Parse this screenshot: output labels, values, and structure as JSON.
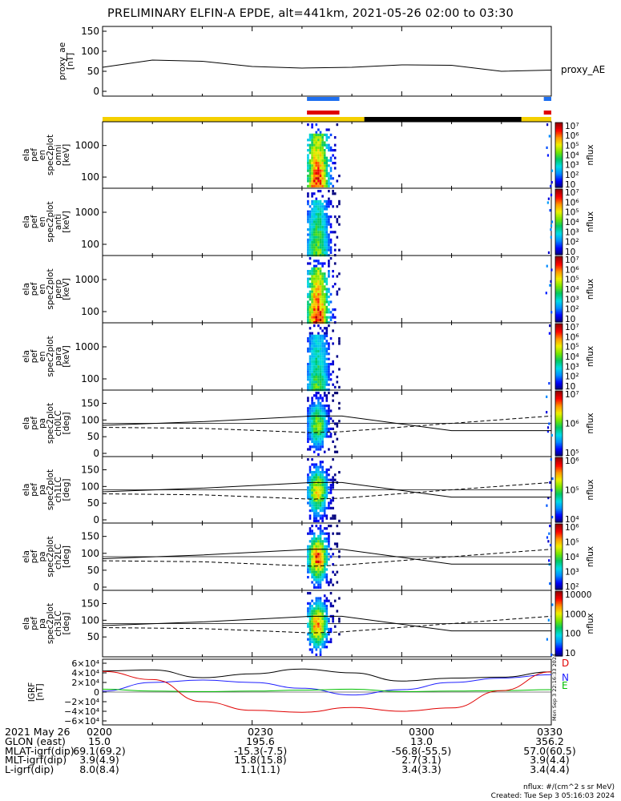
{
  "title": "PRELIMINARY ELFIN-A EPDE, alt=441km, 2021-05-26 02:00 to 03:30",
  "chart_data": [
    {
      "type": "line",
      "panel": "proxy_ae",
      "ylabel": "proxy_ae\n[nT]",
      "ylim": [
        0,
        150
      ],
      "yticks": [
        "0",
        "50",
        "100",
        "150"
      ],
      "legend": "proxy_AE",
      "x_minutes": [
        0,
        10,
        20,
        30,
        40,
        50,
        60,
        70,
        80,
        90
      ],
      "values": [
        60,
        78,
        75,
        62,
        58,
        60,
        66,
        65,
        50,
        53
      ]
    },
    {
      "type": "bar",
      "panel": "science-zone indicators",
      "blue_segments": [
        [
          41,
          47.5
        ],
        [
          88.5,
          90
        ]
      ],
      "red_segments": [
        [
          41,
          47.5
        ],
        [
          88.5,
          90
        ]
      ],
      "yellow_segments": [
        [
          0,
          52.5
        ],
        [
          84,
          90
        ]
      ],
      "black_segments": [
        [
          52.5,
          84
        ]
      ]
    },
    {
      "type": "heatmap",
      "panel": "spec-omni",
      "ylabel": "ela\npef\nen\nspec2plot\nomni\n[keV]",
      "yticks": [
        "100",
        "1000"
      ],
      "colorbar": {
        "label": "nflux",
        "ticks": [
          "10",
          "10²",
          "10³",
          "10⁴",
          "10⁵",
          "10⁶",
          "10⁷"
        ]
      }
    },
    {
      "type": "heatmap",
      "panel": "spec-anti",
      "ylabel": "ela\npef\nen\nspec2plot\nanti\n[keV]",
      "yticks": [
        "100",
        "1000"
      ],
      "colorbar": {
        "label": "nflux",
        "ticks": [
          "10",
          "10²",
          "10³",
          "10⁴",
          "10⁵",
          "10⁶",
          "10⁷"
        ]
      }
    },
    {
      "type": "heatmap",
      "panel": "spec-perp",
      "ylabel": "ela\npef\nen\nspec2plot\nperp\n[keV]",
      "yticks": [
        "100",
        "1000"
      ],
      "colorbar": {
        "label": "nflux",
        "ticks": [
          "10",
          "10²",
          "10³",
          "10⁴",
          "10⁵",
          "10⁶",
          "10⁷"
        ]
      }
    },
    {
      "type": "heatmap",
      "panel": "spec-para",
      "ylabel": "ela\npef\nen\nspec2plot\npara\n[keV]",
      "yticks": [
        "100",
        "1000"
      ],
      "colorbar": {
        "label": "nflux",
        "ticks": [
          "10",
          "10²",
          "10³",
          "10⁴",
          "10⁵",
          "10⁶",
          "10⁷"
        ]
      }
    },
    {
      "type": "heatmap",
      "panel": "pa-ch0LC",
      "ylabel": "ela\npef\npa\nspec2plot\nch0LC\n[deg]",
      "ylim": [
        0,
        180
      ],
      "yticks": [
        "0",
        "50",
        "100",
        "150"
      ],
      "colorbar": {
        "label": "nflux",
        "ticks": [
          "10⁵",
          "10⁶",
          "10⁷"
        ]
      }
    },
    {
      "type": "heatmap",
      "panel": "pa-ch1LC",
      "ylabel": "ela\npef\npa\nspec2plot\nch1LC\n[deg]",
      "ylim": [
        0,
        180
      ],
      "yticks": [
        "0",
        "50",
        "100",
        "150"
      ],
      "colorbar": {
        "label": "nflux",
        "ticks": [
          "10⁴",
          "10⁵",
          "10⁶"
        ]
      }
    },
    {
      "type": "heatmap",
      "panel": "pa-ch2LC",
      "ylabel": "ela\npef\npa\nspec2plot\nch2LC\n[deg]",
      "ylim": [
        0,
        180
      ],
      "yticks": [
        "0",
        "50",
        "100",
        "150"
      ],
      "colorbar": {
        "label": "nflux",
        "ticks": [
          "10²",
          "10³",
          "10⁴",
          "10⁵",
          "10⁶"
        ]
      }
    },
    {
      "type": "heatmap",
      "panel": "pa-ch3LC",
      "ylabel": "ela\npef\npa\nspec2plot\nch3LC\n[deg]",
      "ylim": [
        0,
        180
      ],
      "yticks": [
        "50",
        "100",
        "150"
      ],
      "colorbar": {
        "label": "nflux",
        "ticks": [
          "10",
          "100",
          "1000",
          "10000"
        ]
      }
    },
    {
      "type": "line",
      "panel": "igrf",
      "ylabel": "IGRF\n[nT]",
      "ylim": [
        -60000,
        60000
      ],
      "yticks": [
        "−6×10⁴",
        "−4×10⁴",
        "−2×10⁴",
        "0",
        "2×10⁴",
        "4×10⁴",
        "6×10⁴"
      ],
      "x_minutes": [
        0,
        10,
        20,
        30,
        40,
        50,
        60,
        70,
        80,
        90
      ],
      "series": [
        {
          "name": "D",
          "color": "#000000",
          "values": [
            44000,
            46000,
            30000,
            38000,
            48000,
            40000,
            23000,
            29000,
            31000,
            42000
          ]
        },
        {
          "name": "N",
          "color": "#2020ff",
          "values": [
            2000,
            20000,
            25000,
            20000,
            8000,
            -6000,
            5000,
            20000,
            29000,
            36000
          ]
        },
        {
          "name": "E",
          "color": "#00c000",
          "values": [
            6000,
            2000,
            1000,
            2000,
            4000,
            6000,
            1000,
            2000,
            3000,
            5000
          ]
        },
        {
          "name": "",
          "color": "#e00000",
          "values": [
            43000,
            26000,
            -20000,
            -38000,
            -42000,
            -32000,
            -40000,
            -33000,
            3000,
            42000
          ]
        }
      ]
    }
  ],
  "xaxis": {
    "ticks": [
      "0200",
      "0230",
      "0300",
      "0330"
    ],
    "start_label": "2021 May 26"
  },
  "ephemeris": [
    {
      "label": "2021 May 26",
      "values": [
        "0200",
        "0230",
        "0300",
        "0330"
      ]
    },
    {
      "label": "GLON (east)",
      "values": [
        "15.0",
        "195.6",
        "13.0",
        "356.2"
      ]
    },
    {
      "label": "MLAT-igrf(dip)",
      "values": [
        "69.1(69.2)",
        "-15.3(-7.5)",
        "-56.8(-55.5)",
        "57.0(60.5)"
      ]
    },
    {
      "label": "MLT-igrf(dip)",
      "values": [
        "3.9(4.9)",
        "15.8(15.8)",
        "2.7(3.1)",
        "3.9(4.4)"
      ]
    },
    {
      "label": "L-igrf(dip)",
      "values": [
        "8.0(8.4)",
        "1.1(1.1)",
        "3.4(3.3)",
        "3.4(4.4)"
      ]
    }
  ],
  "side_stamp": "Mon Sep  3 22:16:33 2024",
  "footer": {
    "units": "nflux: #/(cm^2 s sr MeV)",
    "created": "Created: Tue Sep  3 05:16:03 2024"
  }
}
